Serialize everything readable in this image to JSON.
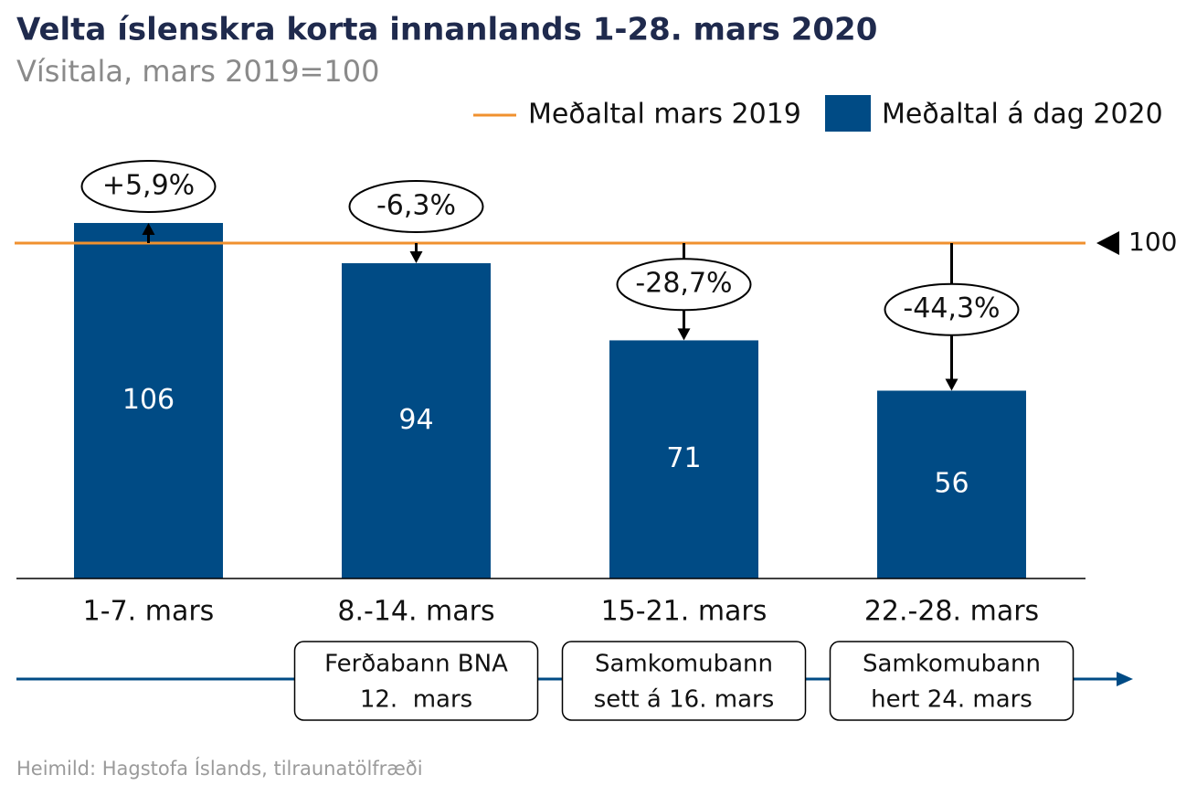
{
  "chart_data": {
    "type": "bar",
    "title": "Velta íslenskra korta innanlands 1-28. mars 2020",
    "subtitle": "Vísitala, mars 2019=100",
    "categories": [
      "1-7. mars",
      "8.-14. mars",
      "15-21. mars",
      "22.-28. mars"
    ],
    "series": [
      {
        "name": "Meðaltal á dag 2020",
        "color": "#004b85",
        "values": [
          106,
          94,
          71,
          56
        ]
      }
    ],
    "reference_line": {
      "name": "Meðaltal mars 2019",
      "color": "#f0912f",
      "value": 100
    },
    "change_labels": [
      "+5,9%",
      "-6,3%",
      "-28,7%",
      "-44,3%"
    ],
    "ylim": [
      0,
      120
    ],
    "events": [
      {
        "category": 1,
        "lines": [
          "Ferðabann BNA",
          "12.  mars"
        ]
      },
      {
        "category": 2,
        "lines": [
          "Samkomubann",
          "sett á 16. mars"
        ]
      },
      {
        "category": 3,
        "lines": [
          "Samkomubann",
          "hert 24. mars"
        ]
      }
    ],
    "source": "Heimild: Hagstofa Íslands, tilraunatölfræði"
  }
}
